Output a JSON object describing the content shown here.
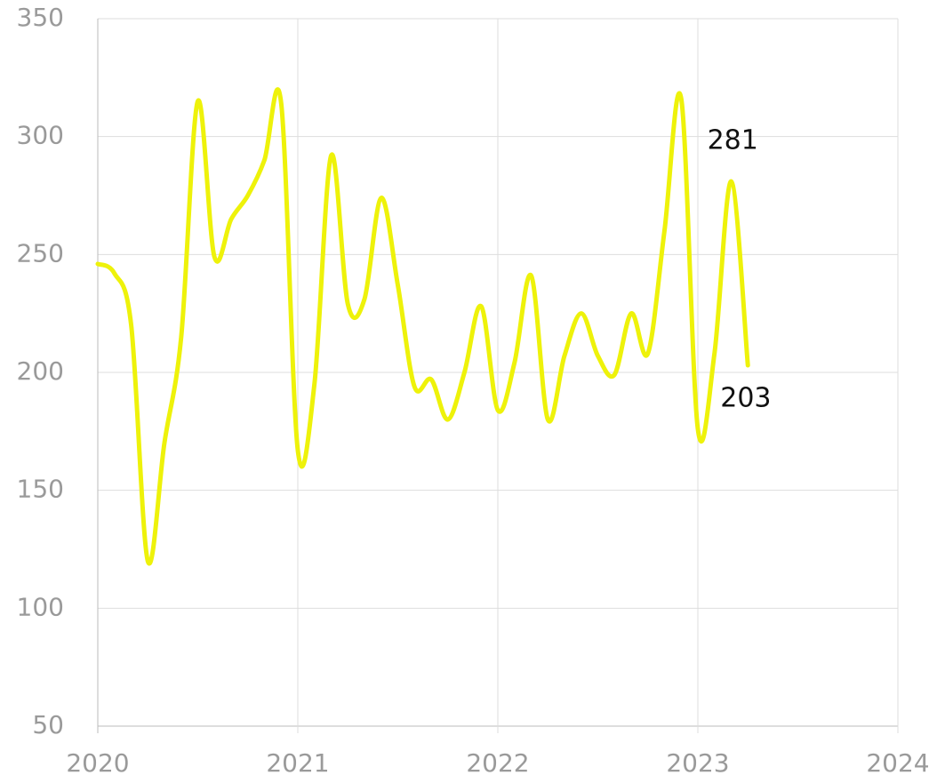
{
  "chart_data": {
    "type": "line",
    "x": [
      2020,
      2020.083,
      2020.167,
      2020.25,
      2020.333,
      2020.417,
      2020.5,
      2020.583,
      2020.667,
      2020.75,
      2020.833,
      2020.917,
      2021,
      2021.083,
      2021.167,
      2021.25,
      2021.333,
      2021.417,
      2021.5,
      2021.583,
      2021.667,
      2021.75,
      2021.833,
      2021.917,
      2022,
      2022.083,
      2022.167,
      2022.25,
      2022.333,
      2022.417,
      2022.5,
      2022.583,
      2022.667,
      2022.75,
      2022.833,
      2022.917,
      2023,
      2023.083,
      2023.167,
      2023.25
    ],
    "values": [
      246,
      242,
      220,
      120,
      170,
      215,
      315,
      249,
      265,
      275,
      290,
      314,
      167,
      195,
      292,
      229,
      231,
      274,
      237,
      194,
      197,
      180,
      200,
      228,
      184,
      204,
      241,
      180,
      207,
      225,
      207,
      199,
      225,
      208,
      260,
      316,
      176,
      208,
      281,
      203
    ],
    "color": "#eef20a",
    "label_points": [
      38,
      39
    ],
    "xlim": [
      2020,
      2024
    ],
    "xticks": [
      2020,
      2021,
      2022,
      2023,
      2024
    ],
    "ylim": [
      50,
      350
    ],
    "yticks": [
      50,
      100,
      150,
      200,
      250,
      300,
      350
    ],
    "grid": true
  }
}
